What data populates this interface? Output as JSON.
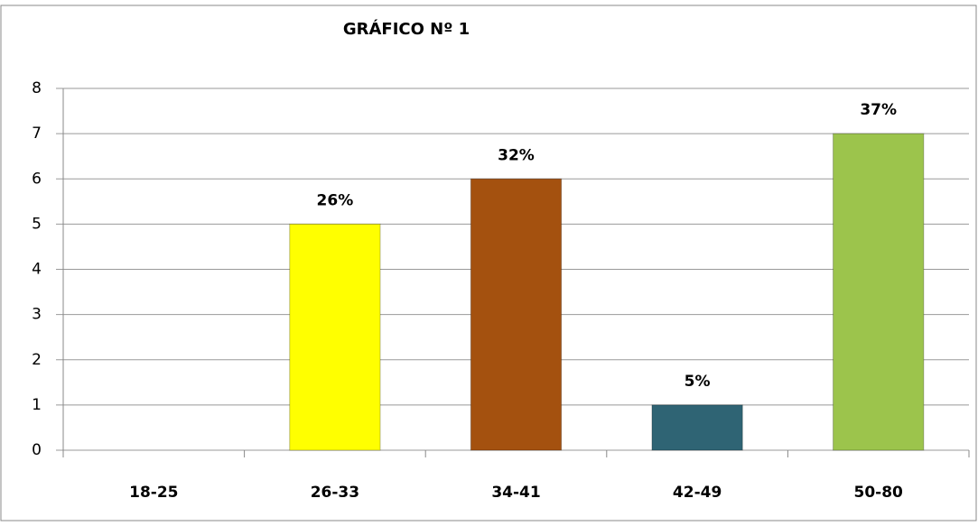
{
  "chart_data": {
    "type": "bar",
    "title": "GRÁFICO Nº 1",
    "categories": [
      "18-25",
      "26-33",
      "34-41",
      "42-49",
      "50-80"
    ],
    "values": [
      0,
      5,
      6,
      1,
      7
    ],
    "colors": [
      "#4f81bd",
      "#ffff00",
      "#a4510f",
      "#2f6474",
      "#9cc44c"
    ],
    "percent": [
      null,
      26,
      32,
      5,
      37
    ],
    "percent_labels": [
      null,
      "26%",
      "32%",
      "5%",
      "37%"
    ],
    "ylim": [
      0,
      8
    ],
    "yticks": [
      0,
      1,
      2,
      3,
      4,
      5,
      6,
      7,
      8
    ],
    "grid": true
  }
}
